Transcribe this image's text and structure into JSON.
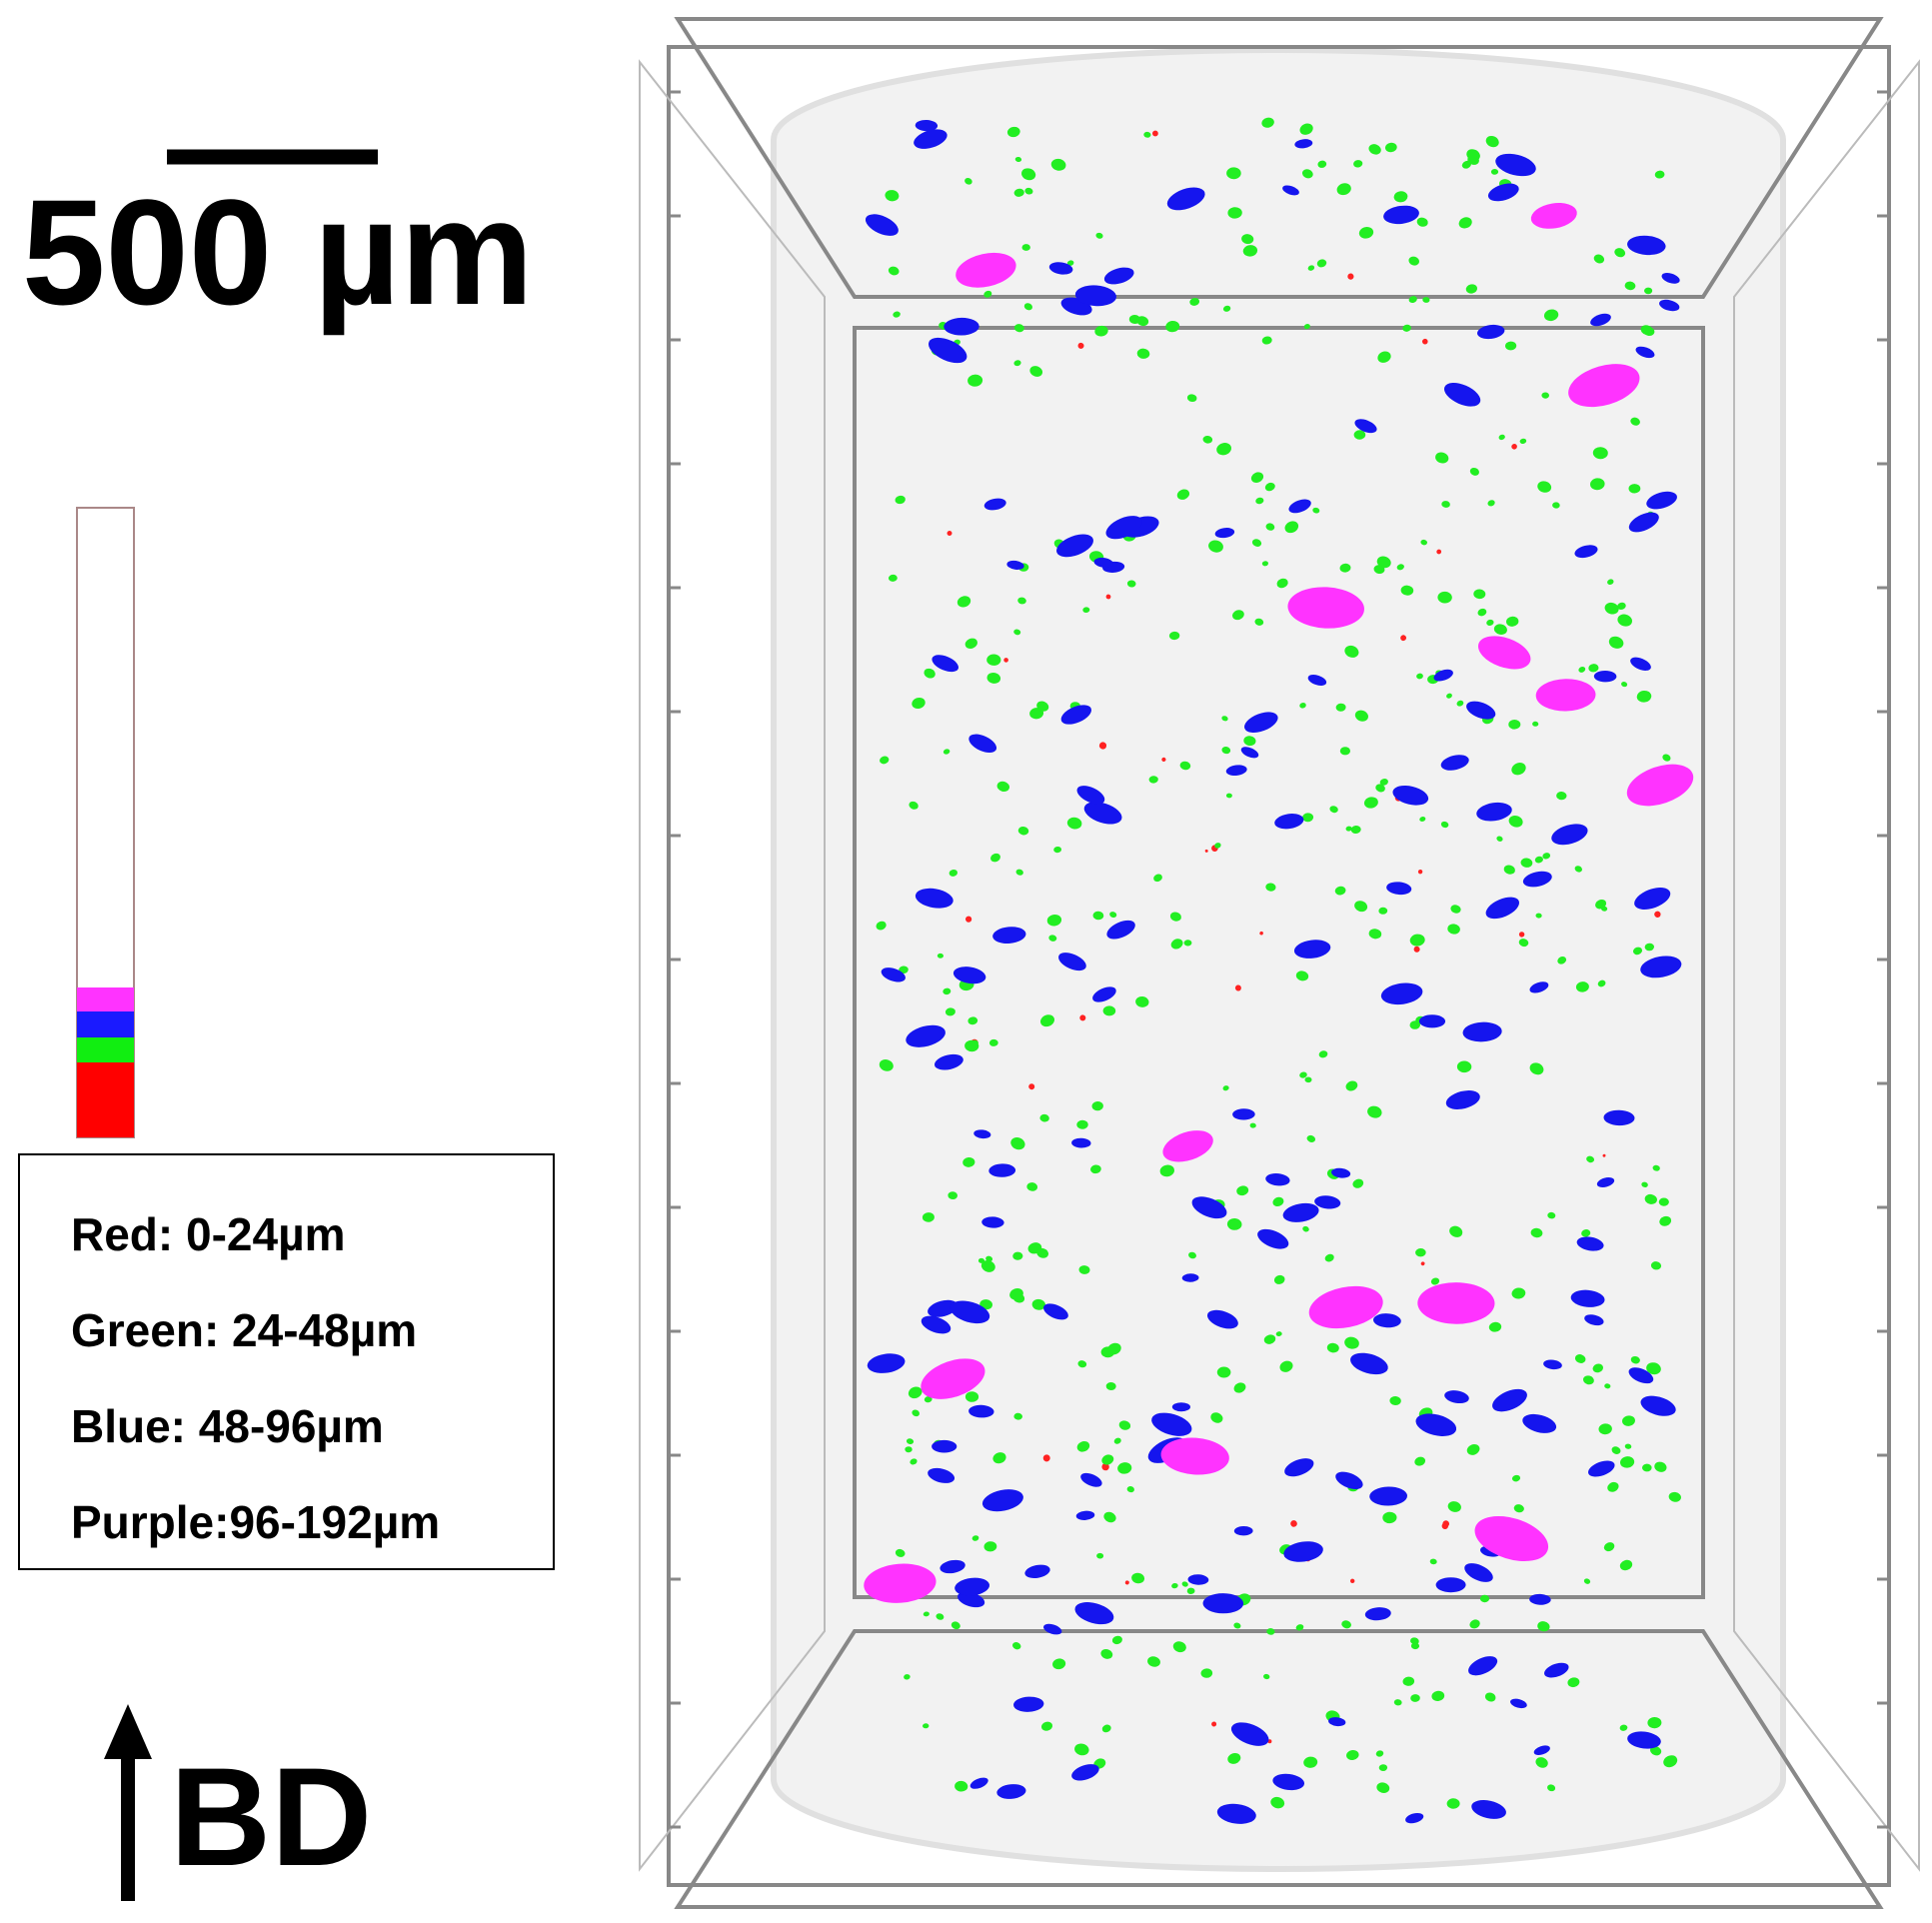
{
  "scale_bar": {
    "label": "500 µm"
  },
  "legend": {
    "items": [
      "Red: 0-24µm",
      "Green: 24-48µm",
      "Blue: 48-96µm",
      "Purple:96-192µm"
    ]
  },
  "direction": {
    "label": "BD"
  }
}
